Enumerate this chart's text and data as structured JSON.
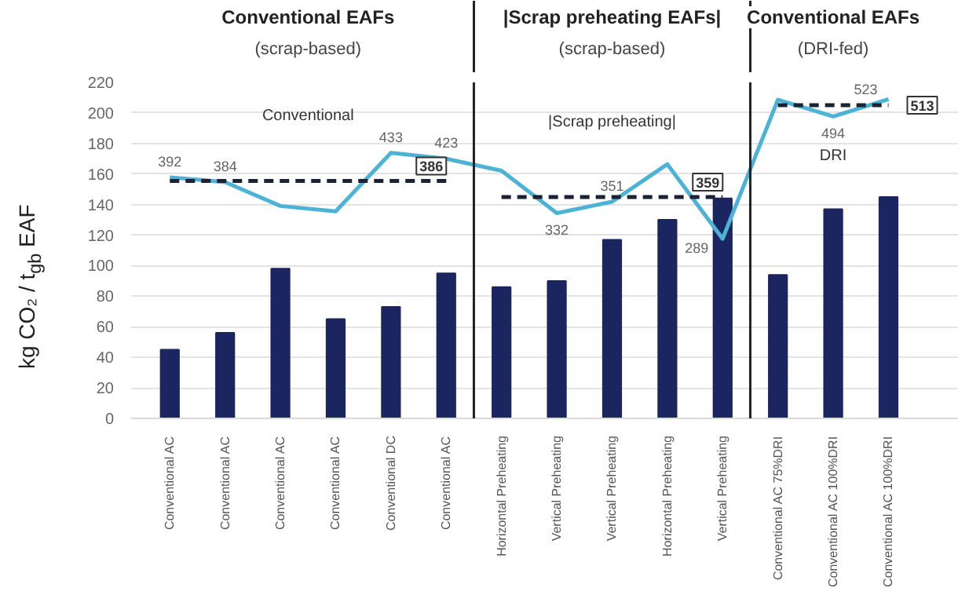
{
  "chart_data": {
    "type": "bar",
    "ylabel": "kg CO₂ / t$_{gb}$ EAF",
    "categories": [
      "Conventional AC",
      "Conventional AC",
      "Conventional AC",
      "Conventional AC",
      "Conventional DC",
      "Conventional AC",
      "Horizontal Preheating",
      "Vertical Preheating",
      "Vertical Preheating",
      "Horizontal Preheating",
      "Vertical Preheating",
      "Conventional AC 75%DRI",
      "Conventional AC 100%DRI",
      "Conventional AC 100%DRI"
    ],
    "ylim": [
      0,
      220
    ],
    "yticks": [
      0,
      20,
      40,
      60,
      80,
      100,
      120,
      140,
      160,
      180,
      200,
      220
    ],
    "y2lim": [
      -12,
      551
    ],
    "grid": "y",
    "series": [
      {
        "color": "#1b2660",
        "values": [
          45,
          56,
          98,
          65,
          73,
          95,
          86,
          90,
          117,
          130,
          144,
          94,
          137,
          145
        ]
      },
      {
        "type": "line",
        "axis": "y2",
        "color": "#4db3d6",
        "values": [
          392,
          384,
          344,
          335,
          433,
          423,
          403,
          332,
          351,
          414,
          289,
          522,
          494,
          523
        ],
        "value_labels": [
          "392",
          "384",
          null,
          null,
          "433",
          "423",
          null,
          "332",
          "351",
          null,
          "289",
          null,
          "494",
          "523"
        ]
      },
      {
        "type": "line",
        "axis": "y2",
        "color": "#1b2233",
        "line_style": "dashed",
        "values": [
          386,
          386,
          386,
          386,
          386,
          386,
          null,
          null,
          null,
          null,
          null,
          null,
          null,
          null
        ],
        "value_labels": [
          null,
          null,
          null,
          null,
          null,
          "386",
          null,
          null,
          null,
          null,
          null,
          null,
          null,
          null
        ]
      },
      {
        "type": "line",
        "axis": "y2",
        "color": "#1b2233",
        "line_style": "dashed",
        "values": [
          null,
          null,
          null,
          null,
          null,
          null,
          359,
          359,
          359,
          359,
          359,
          null,
          null,
          null
        ],
        "value_labels": [
          null,
          null,
          null,
          null,
          null,
          null,
          null,
          null,
          null,
          null,
          "359",
          null,
          null,
          null
        ]
      },
      {
        "type": "line",
        "axis": "y2",
        "color": "#1b2233",
        "line_style": "dashed",
        "values": [
          null,
          null,
          null,
          null,
          null,
          null,
          null,
          null,
          null,
          null,
          null,
          513,
          513,
          513
        ],
        "value_labels": [
          null,
          null,
          null,
          null,
          null,
          null,
          null,
          null,
          null,
          null,
          null,
          null,
          null,
          "513"
        ]
      }
    ],
    "annotations": [
      "Conventional EAFs",
      "(scrap-based)",
      "|Scrap preheating EAFs|",
      "(scrap-based)",
      "Conventional EAFs",
      "(DRI-fed)",
      "Conventional",
      "|Scrap preheating|",
      "DRI"
    ]
  }
}
